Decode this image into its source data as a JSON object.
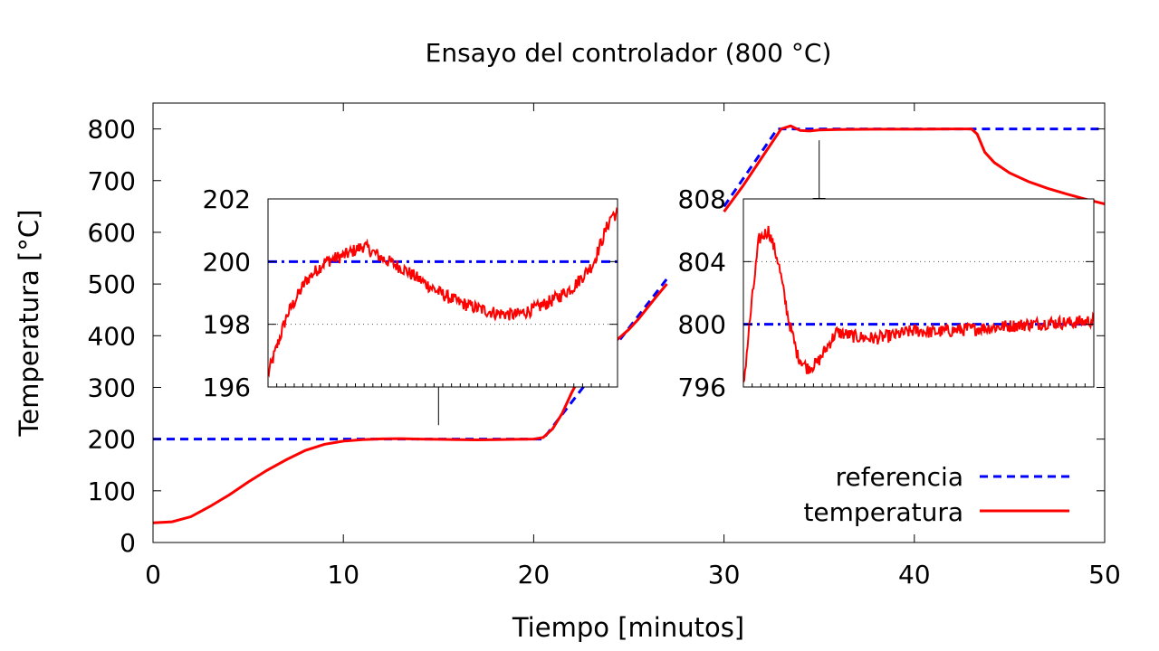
{
  "chart_data": {
    "type": "line",
    "title": "Ensayo del controlador (800 °C)",
    "xlabel": "Tiempo [minutos]",
    "ylabel": "Temperatura [°C]",
    "xlim": [
      0,
      50
    ],
    "ylim": [
      0,
      850
    ],
    "xticks": [
      "0",
      "10",
      "20",
      "30",
      "40",
      "50"
    ],
    "yticks": [
      "0",
      "100",
      "200",
      "300",
      "400",
      "500",
      "600",
      "700",
      "800"
    ],
    "legend": {
      "position": "bottom-right",
      "entries": [
        "referencia",
        "temperatura"
      ]
    },
    "colors": {
      "referencia": "#0000ff",
      "temperatura": "#ff0000"
    },
    "series": [
      {
        "name": "referencia",
        "style": "dashed",
        "x": [
          0,
          20.5,
          27,
          30,
          32.8,
          50
        ],
        "y": [
          200,
          200,
          510,
          650,
          800,
          800
        ]
      },
      {
        "name": "temperatura",
        "style": "solid",
        "x": [
          0,
          1,
          2,
          3,
          4,
          5,
          6,
          7,
          8,
          9,
          10,
          11,
          12,
          13,
          14,
          15,
          16,
          17,
          18,
          19,
          20,
          20.5,
          21,
          21.5,
          22,
          22.5,
          23,
          23.5,
          24,
          24.5,
          25,
          25.5,
          26,
          26.5,
          27,
          30,
          31,
          32,
          33,
          33.5,
          34,
          34.5,
          35,
          36,
          38,
          40,
          42,
          43,
          43.3,
          43.7,
          44.2,
          45,
          46,
          47,
          48,
          49,
          50
        ],
        "y": [
          38,
          40,
          50,
          70,
          92,
          117,
          140,
          160,
          178,
          190,
          196,
          199,
          200.5,
          201,
          200,
          199.5,
          199,
          198.5,
          198.8,
          199.5,
          200,
          203,
          220,
          250,
          290,
          325,
          350,
          368,
          380,
          396,
          412,
          432,
          455,
          478,
          500,
          640,
          690,
          745,
          800,
          806,
          797,
          796,
          798,
          799,
          799.5,
          799.5,
          800,
          800,
          790,
          755,
          735,
          715,
          698,
          685,
          674,
          664,
          655
        ]
      }
    ],
    "insets": [
      {
        "ylim": [
          196,
          202
        ],
        "yticks": [
          "196",
          "198",
          "200",
          "202"
        ],
        "reference": 200,
        "dotted_line": 198,
        "arrow_time": 15,
        "t": [
          6,
          7,
          8,
          9,
          10,
          11,
          12,
          13,
          14,
          15,
          16,
          17,
          18,
          19,
          20,
          21,
          22,
          23,
          24
        ],
        "y": [
          196.4,
          198.3,
          199.4,
          200.0,
          200.2,
          200.5,
          200.1,
          199.8,
          199.4,
          199.0,
          198.7,
          198.5,
          198.35,
          198.3,
          198.5,
          198.8,
          199.2,
          199.9,
          201.5
        ]
      },
      {
        "ylim": [
          796,
          808
        ],
        "yticks": [
          "796",
          "800",
          "804",
          "808"
        ],
        "reference": 800,
        "dotted_line": 804,
        "arrow_time": 35,
        "t": [
          31.2,
          31.6,
          32,
          32.5,
          33,
          33.5,
          34,
          34.5,
          35,
          35.5,
          36,
          37,
          38,
          39,
          40,
          41,
          42,
          43,
          44,
          45,
          46,
          47,
          48,
          49,
          50
        ],
        "y": [
          796,
          801,
          805.4,
          806,
          804,
          800.5,
          798,
          797.2,
          797.5,
          798.5,
          799.5,
          799.2,
          799.1,
          799.3,
          799.6,
          799.5,
          799.6,
          799.7,
          799.8,
          799.9,
          800.0,
          800.1,
          800.1,
          800.2,
          800.4
        ]
      }
    ]
  }
}
